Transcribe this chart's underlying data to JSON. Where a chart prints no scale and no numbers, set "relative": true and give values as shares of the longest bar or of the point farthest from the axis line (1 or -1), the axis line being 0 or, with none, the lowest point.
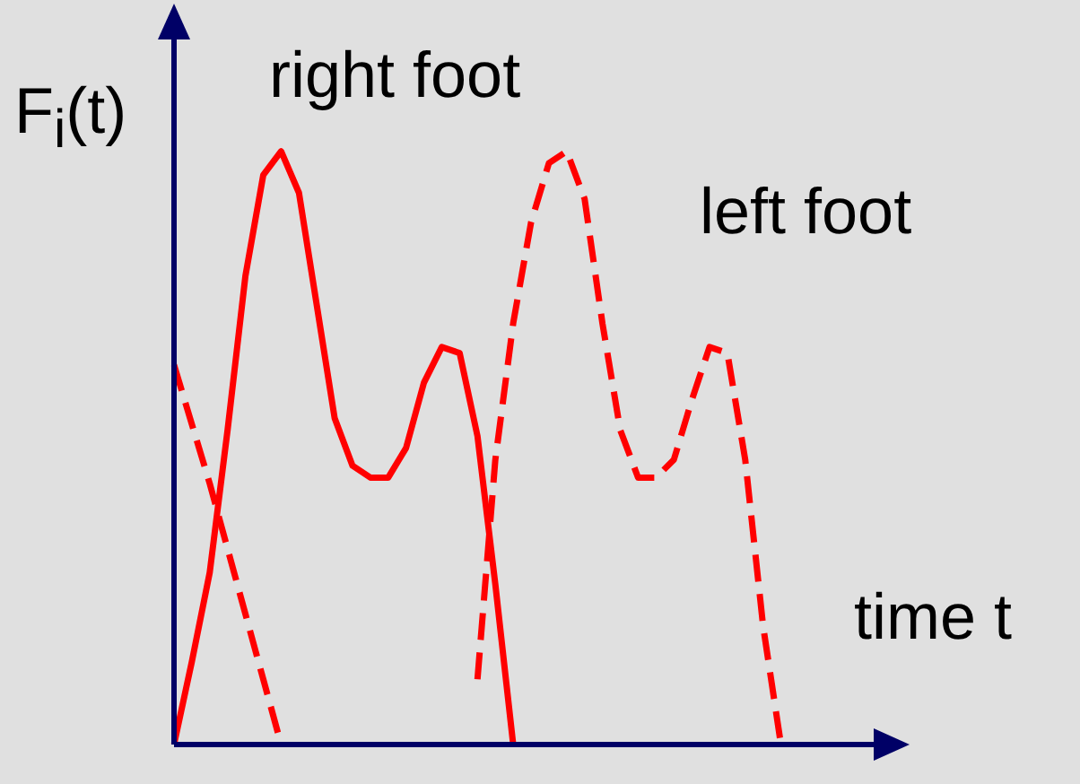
{
  "chart_data": {
    "type": "line",
    "xlabel": "time t",
    "ylabel": "F$_{i}$(t)",
    "relative": true,
    "marker": "none",
    "categories": [
      null,
      null,
      null,
      null,
      null,
      null,
      null,
      null,
      null,
      null,
      null,
      null,
      null,
      null,
      null,
      null,
      null,
      null,
      null,
      null,
      null,
      null,
      null,
      null,
      null,
      null,
      null,
      null,
      null,
      null,
      null,
      null,
      null,
      null,
      null,
      null,
      null,
      null,
      null,
      null,
      null
    ],
    "series": [
      {
        "name": "right foot",
        "color": "#ff0000",
        "line_style": "solid",
        "values": [
          0,
          0.14,
          0.29,
          0.53,
          0.79,
          0.96,
          1,
          0.93,
          0.74,
          0.55,
          0.47,
          0.45,
          0.45,
          0.5,
          0.61,
          0.67,
          0.66,
          0.52,
          0.27,
          0,
          null,
          null,
          null,
          null,
          null,
          null,
          null,
          null,
          null,
          null,
          null,
          null,
          null,
          null,
          null,
          null,
          null,
          null,
          null,
          null,
          null
        ]
      },
      {
        "color": "#ff0000",
        "line_style": "dashed",
        "values": [
          0.64,
          0.54,
          0.44,
          0.33,
          0.22,
          0.11,
          0,
          null,
          null,
          null,
          null,
          null,
          null,
          null,
          null,
          null,
          null,
          null,
          null,
          null,
          null,
          null,
          null,
          null,
          null,
          null,
          null,
          null,
          null,
          null,
          null,
          null,
          null,
          null,
          null,
          null,
          null,
          null,
          null,
          null,
          null
        ]
      },
      {
        "name": "left foot",
        "color": "#ff0000",
        "line_style": "dashed",
        "values": [
          null,
          null,
          null,
          null,
          null,
          null,
          null,
          null,
          null,
          null,
          null,
          null,
          null,
          null,
          null,
          null,
          null,
          0.11,
          0.48,
          0.71,
          0.88,
          0.98,
          1,
          0.92,
          0.71,
          0.53,
          0.45,
          0.45,
          0.48,
          0.58,
          0.67,
          0.66,
          0.48,
          0.2,
          0,
          null,
          null,
          null,
          null,
          null,
          null
        ]
      }
    ]
  }
}
